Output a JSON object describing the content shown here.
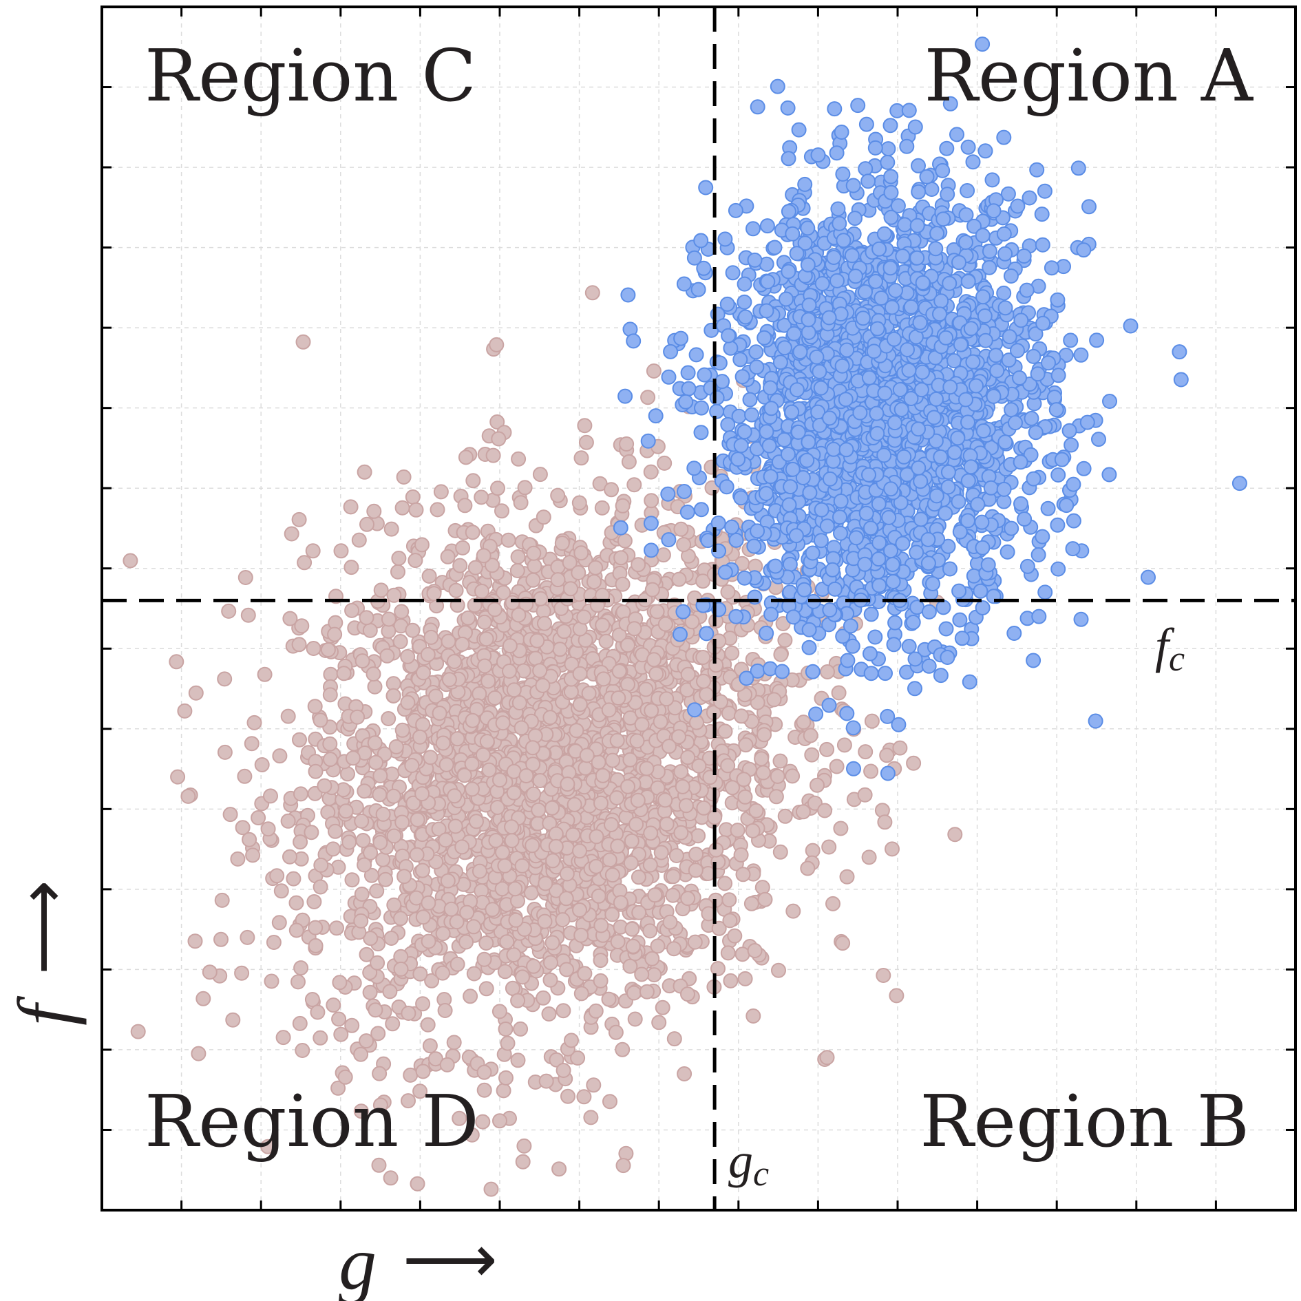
{
  "chart_data": {
    "type": "scatter",
    "title": "",
    "xlabel": "g",
    "ylabel": "f",
    "x_arrow": "⟶",
    "y_arrow": "⟶",
    "xlim": [
      0,
      15
    ],
    "ylim": [
      0,
      15
    ],
    "grid": true,
    "thresholds": {
      "g_c": {
        "value": 7.7,
        "label": "g",
        "subscript": "c"
      },
      "f_c": {
        "value": 7.6,
        "label": "f",
        "subscript": "c"
      }
    },
    "regions": [
      {
        "id": "A",
        "label": "Region A",
        "position": "top-right"
      },
      {
        "id": "B",
        "label": "Region B",
        "position": "bottom-right"
      },
      {
        "id": "C",
        "label": "Region C",
        "position": "top-left"
      },
      {
        "id": "D",
        "label": "Region D",
        "position": "bottom-left"
      }
    ],
    "series": [
      {
        "name": "pink cluster",
        "color": "#d8bfbe",
        "stroke": "#c9a4a3",
        "count": 3000,
        "mean": [
          5.6,
          5.5
        ],
        "std": [
          1.55,
          1.65
        ],
        "correlation": 0.15
      },
      {
        "name": "blue cluster",
        "color": "#8fb1f2",
        "stroke": "#5b8de6",
        "count": 2400,
        "mean": [
          9.8,
          10.0
        ],
        "std": [
          1.05,
          1.35
        ],
        "correlation": 0.05
      }
    ]
  }
}
